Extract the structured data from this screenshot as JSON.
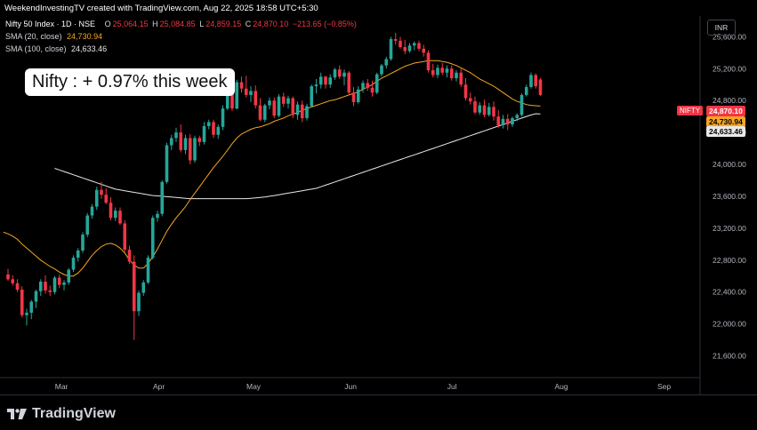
{
  "header": {
    "created_by": "WeekendInvestingTV created with TradingView.com, Aug 22, 2025 18:58 UTC+5:30"
  },
  "legend": {
    "symbol": "Nifty 50 Index · 1D · NSE",
    "ohlc": {
      "o_label": "O",
      "o": "25,064.15",
      "h_label": "H",
      "h": "25,084.85",
      "l_label": "L",
      "l": "24,859.15",
      "c_label": "C",
      "c": "24,870.10",
      "chg": "−213.65 (−0.85%)"
    },
    "sma20_label": "SMA (20, close)",
    "sma20_value": "24,730.94",
    "sma100_label": "SMA (100, close)",
    "sma100_value": "24,633.46"
  },
  "callout": "Nifty : + 0.97% this week",
  "currency": "INR",
  "price_tags": {
    "symbol_tag": "NIFTY",
    "last": "24,870.10",
    "sma20": "24,730.94",
    "sma100": "24,633.46"
  },
  "footer": {
    "brand": "TradingView"
  },
  "colors": {
    "up": "#26a69a",
    "down": "#f23645",
    "sma20": "#f5a623",
    "sma100": "#e8e8e8",
    "bg": "#000000"
  },
  "chart_data": {
    "type": "candlestick",
    "y_ticks": [
      "21,600.00",
      "22,000.00",
      "22,400.00",
      "22,800.00",
      "23,200.00",
      "23,600.00",
      "24,000.00",
      "24,400.00",
      "24,800.00",
      "25,200.00",
      "25,600.00"
    ],
    "ylim": [
      21350,
      25860
    ],
    "x_ticks": [
      {
        "label": "Mar",
        "index": 11
      },
      {
        "label": "Apr",
        "index": 32
      },
      {
        "label": "May",
        "index": 52
      },
      {
        "label": "Jun",
        "index": 73
      },
      {
        "label": "Jul",
        "index": 95
      },
      {
        "label": "Aug",
        "index": 118
      },
      {
        "label": "Sep",
        "index": 140
      }
    ],
    "candles": [
      [
        22620,
        22690,
        22540,
        22560
      ],
      [
        22560,
        22610,
        22480,
        22510
      ],
      [
        22510,
        22560,
        22400,
        22430
      ],
      [
        22430,
        22470,
        22080,
        22110
      ],
      [
        22110,
        22190,
        21980,
        22140
      ],
      [
        22140,
        22300,
        22060,
        22280
      ],
      [
        22280,
        22430,
        22200,
        22410
      ],
      [
        22410,
        22560,
        22350,
        22530
      ],
      [
        22530,
        22610,
        22380,
        22420
      ],
      [
        22420,
        22480,
        22350,
        22400
      ],
      [
        22400,
        22600,
        22370,
        22580
      ],
      [
        22580,
        22620,
        22450,
        22490
      ],
      [
        22490,
        22550,
        22420,
        22520
      ],
      [
        22520,
        22700,
        22490,
        22680
      ],
      [
        22680,
        22860,
        22650,
        22830
      ],
      [
        22830,
        22950,
        22780,
        22920
      ],
      [
        22920,
        23150,
        22890,
        23120
      ],
      [
        23120,
        23390,
        23090,
        23360
      ],
      [
        23360,
        23500,
        23320,
        23470
      ],
      [
        23470,
        23720,
        23430,
        23680
      ],
      [
        23680,
        23780,
        23570,
        23620
      ],
      [
        23620,
        23700,
        23500,
        23520
      ],
      [
        23520,
        23590,
        23300,
        23330
      ],
      [
        23330,
        23460,
        23290,
        23420
      ],
      [
        23420,
        23460,
        23240,
        23260
      ],
      [
        23260,
        23300,
        22900,
        22930
      ],
      [
        22930,
        22980,
        22750,
        22780
      ],
      [
        22780,
        22860,
        21800,
        22160
      ],
      [
        22160,
        22420,
        22100,
        22390
      ],
      [
        22390,
        22550,
        22350,
        22520
      ],
      [
        22520,
        22860,
        22500,
        22830
      ],
      [
        22830,
        23360,
        22810,
        23330
      ],
      [
        23330,
        23420,
        23280,
        23380
      ],
      [
        23380,
        23800,
        23350,
        23780
      ],
      [
        23780,
        24270,
        23760,
        24240
      ],
      [
        24240,
        24370,
        24180,
        24330
      ],
      [
        24330,
        24460,
        24280,
        24400
      ],
      [
        24400,
        24500,
        24150,
        24180
      ],
      [
        24180,
        24370,
        24130,
        24330
      ],
      [
        24330,
        24380,
        24000,
        24050
      ],
      [
        24050,
        24360,
        24020,
        24330
      ],
      [
        24330,
        24360,
        24230,
        24280
      ],
      [
        24280,
        24530,
        24250,
        24480
      ],
      [
        24480,
        24560,
        24440,
        24530
      ],
      [
        24530,
        24560,
        24330,
        24370
      ],
      [
        24370,
        24500,
        24320,
        24470
      ],
      [
        24470,
        24740,
        24430,
        24700
      ],
      [
        24700,
        25010,
        24680,
        24980
      ],
      [
        24980,
        25050,
        24670,
        24700
      ],
      [
        24700,
        25060,
        24690,
        25030
      ],
      [
        25030,
        25100,
        24900,
        24950
      ],
      [
        24950,
        25110,
        24840,
        24870
      ],
      [
        24870,
        24980,
        24780,
        24920
      ],
      [
        24920,
        24990,
        24700,
        24740
      ],
      [
        24740,
        24830,
        24540,
        24560
      ],
      [
        24560,
        24760,
        24530,
        24740
      ],
      [
        24740,
        24840,
        24690,
        24800
      ],
      [
        24800,
        24840,
        24580,
        24610
      ],
      [
        24610,
        24880,
        24590,
        24850
      ],
      [
        24850,
        24900,
        24720,
        24760
      ],
      [
        24760,
        24860,
        24700,
        24830
      ],
      [
        24830,
        24850,
        24580,
        24620
      ],
      [
        24620,
        24790,
        24560,
        24750
      ],
      [
        24750,
        24800,
        24530,
        24580
      ],
      [
        24580,
        24760,
        24550,
        24730
      ],
      [
        24730,
        25000,
        24720,
        24980
      ],
      [
        24980,
        25070,
        24890,
        25000
      ],
      [
        25000,
        25150,
        24950,
        25100
      ],
      [
        25100,
        25110,
        24950,
        25000
      ],
      [
        25000,
        25130,
        24960,
        25090
      ],
      [
        25090,
        25210,
        25060,
        25190
      ],
      [
        25190,
        25240,
        25070,
        25100
      ],
      [
        25100,
        25190,
        24990,
        25150
      ],
      [
        25150,
        25170,
        24870,
        24900
      ],
      [
        24900,
        24970,
        24730,
        24780
      ],
      [
        24780,
        24980,
        24760,
        24940
      ],
      [
        24940,
        25050,
        24900,
        25020
      ],
      [
        25020,
        25070,
        24920,
        24960
      ],
      [
        24960,
        25050,
        24850,
        24900
      ],
      [
        24900,
        25150,
        24880,
        25130
      ],
      [
        25130,
        25260,
        25100,
        25240
      ],
      [
        25240,
        25350,
        25200,
        25320
      ],
      [
        25320,
        25600,
        25300,
        25570
      ],
      [
        25570,
        25650,
        25500,
        25550
      ],
      [
        25550,
        25600,
        25450,
        25470
      ],
      [
        25470,
        25560,
        25380,
        25420
      ],
      [
        25420,
        25520,
        25400,
        25490
      ],
      [
        25490,
        25540,
        25430,
        25520
      ],
      [
        25520,
        25550,
        25420,
        25450
      ],
      [
        25450,
        25500,
        25350,
        25400
      ],
      [
        25400,
        25430,
        25150,
        25180
      ],
      [
        25180,
        25260,
        25090,
        25120
      ],
      [
        25120,
        25250,
        25080,
        25210
      ],
      [
        25210,
        25270,
        25120,
        25150
      ],
      [
        25150,
        25240,
        25090,
        25200
      ],
      [
        25200,
        25240,
        25050,
        25080
      ],
      [
        25080,
        25180,
        25040,
        25150
      ],
      [
        25150,
        25220,
        24970,
        25000
      ],
      [
        25000,
        25080,
        24800,
        24830
      ],
      [
        24830,
        24900,
        24750,
        24790
      ],
      [
        24790,
        24850,
        24630,
        24650
      ],
      [
        24650,
        24780,
        24620,
        24740
      ],
      [
        24740,
        24810,
        24590,
        24620
      ],
      [
        24620,
        24770,
        24600,
        24720
      ],
      [
        24720,
        24790,
        24550,
        24600
      ],
      [
        24600,
        24680,
        24460,
        24490
      ],
      [
        24490,
        24620,
        24450,
        24570
      ],
      [
        24570,
        24630,
        24430,
        24500
      ],
      [
        24500,
        24600,
        24470,
        24580
      ],
      [
        24580,
        24640,
        24540,
        24620
      ],
      [
        24620,
        24890,
        24600,
        24870
      ],
      [
        24870,
        25000,
        24850,
        24970
      ],
      [
        24970,
        25150,
        24950,
        25120
      ],
      [
        25120,
        25140,
        24950,
        24980
      ],
      [
        25064,
        25085,
        24859,
        24870
      ]
    ],
    "sma20": [
      23150,
      23130,
      23100,
      23060,
      23000,
      22950,
      22900,
      22850,
      22800,
      22760,
      22720,
      22690,
      22650,
      22620,
      22600,
      22600,
      22640,
      22700,
      22780,
      22860,
      22920,
      22970,
      23000,
      23010,
      22990,
      22950,
      22890,
      22800,
      22740,
      22700,
      22700,
      22760,
      22840,
      22940,
      23050,
      23160,
      23250,
      23330,
      23400,
      23470,
      23560,
      23640,
      23720,
      23800,
      23880,
      23960,
      24030,
      24100,
      24180,
      24260,
      24330,
      24380,
      24410,
      24440,
      24460,
      24470,
      24490,
      24510,
      24540,
      24560,
      24580,
      24610,
      24630,
      24650,
      24680,
      24700,
      24720,
      24740,
      24760,
      24780,
      24800,
      24810,
      24830,
      24850,
      24870,
      24890,
      24910,
      24940,
      24970,
      25000,
      25040,
      25080,
      25110,
      25140,
      25170,
      25200,
      25230,
      25250,
      25270,
      25280,
      25290,
      25300,
      25300,
      25300,
      25290,
      25280,
      25260,
      25240,
      25210,
      25180,
      25150,
      25110,
      25070,
      25040,
      25010,
      24980,
      24940,
      24900,
      24860,
      24820,
      24790,
      24770,
      24750,
      24740,
      24735,
      24731
    ],
    "sma100": [
      23950,
      23930,
      23910,
      23890,
      23870,
      23850,
      23830,
      23810,
      23790,
      23770,
      23750,
      23730,
      23710,
      23690,
      23680,
      23670,
      23660,
      23650,
      23640,
      23630,
      23620,
      23610,
      23605,
      23600,
      23595,
      23590,
      23585,
      23580,
      23575,
      23570,
      23570,
      23570,
      23570,
      23570,
      23570,
      23570,
      23570,
      23570,
      23570,
      23570,
      23570,
      23570,
      23575,
      23580,
      23585,
      23590,
      23600,
      23610,
      23620,
      23630,
      23640,
      23650,
      23660,
      23670,
      23680,
      23690,
      23700,
      23720,
      23740,
      23760,
      23780,
      23800,
      23820,
      23840,
      23860,
      23880,
      23900,
      23920,
      23940,
      23960,
      23980,
      24000,
      24020,
      24040,
      24060,
      24080,
      24100,
      24120,
      24140,
      24160,
      24180,
      24200,
      24220,
      24240,
      24260,
      24280,
      24300,
      24320,
      24340,
      24360,
      24380,
      24400,
      24420,
      24440,
      24460,
      24480,
      24500,
      24520,
      24540,
      24560,
      24580,
      24600,
      24620,
      24635,
      24633
    ]
  }
}
